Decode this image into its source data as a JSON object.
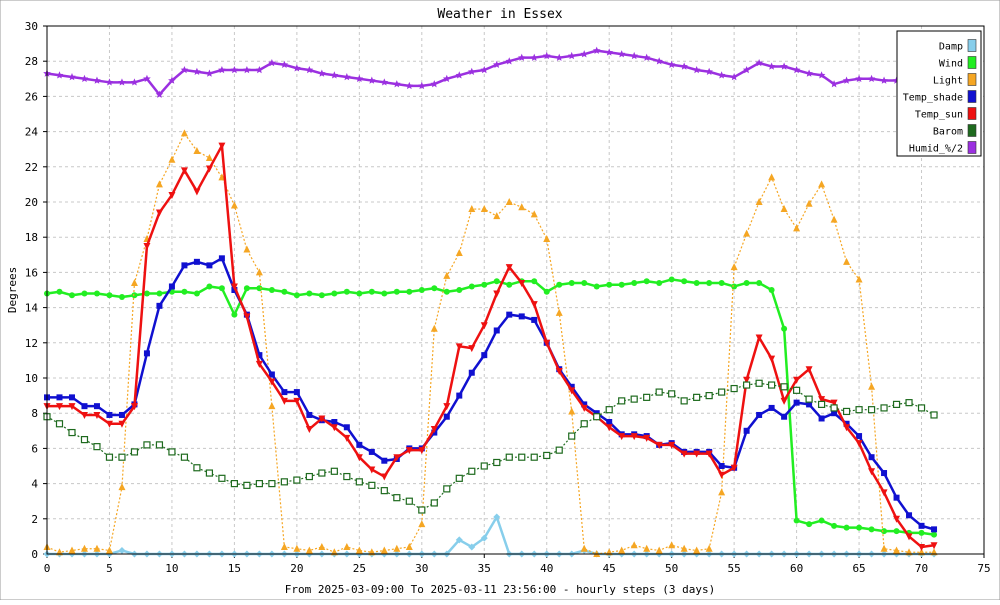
{
  "chart_data": {
    "type": "line",
    "title": "Weather in Essex",
    "xlabel": "From 2025-03-09:00 To 2025-03-11 23:56:00 - hourly steps (3 days)",
    "ylabel": "Degrees",
    "xlim": [
      0,
      75
    ],
    "ylim": [
      0,
      30
    ],
    "xticks": [
      "0",
      "5",
      "10",
      "15",
      "20",
      "25",
      "30",
      "35",
      "40",
      "45",
      "50",
      "55",
      "60",
      "65",
      "70",
      "75"
    ],
    "yticks": [
      "0",
      "2",
      "4",
      "6",
      "8",
      "10",
      "12",
      "14",
      "16",
      "18",
      "20",
      "22",
      "24",
      "26",
      "28",
      "30"
    ],
    "grid": true,
    "legend_position": "top-right",
    "x": [
      0,
      1,
      2,
      3,
      4,
      5,
      6,
      7,
      8,
      9,
      10,
      11,
      12,
      13,
      14,
      15,
      16,
      17,
      18,
      19,
      20,
      21,
      22,
      23,
      24,
      25,
      26,
      27,
      28,
      29,
      30,
      31,
      32,
      33,
      34,
      35,
      36,
      37,
      38,
      39,
      40,
      41,
      42,
      43,
      44,
      45,
      46,
      47,
      48,
      49,
      50,
      51,
      52,
      53,
      54,
      55,
      56,
      57,
      58,
      59,
      60,
      61,
      62,
      63,
      64,
      65,
      66,
      67,
      68,
      69,
      70,
      71
    ],
    "series": [
      {
        "name": "Damp",
        "color": "#87ceeb",
        "marker": "diamond",
        "dashed": false,
        "values": [
          0,
          0,
          0,
          0,
          0,
          0,
          0.2,
          0,
          0,
          0,
          0,
          0,
          0,
          0,
          0,
          0,
          0,
          0,
          0,
          0,
          0,
          0,
          0,
          0,
          0,
          0,
          0,
          0,
          0,
          0,
          0,
          0,
          0,
          0.8,
          0.4,
          0.9,
          2.1,
          0,
          0,
          0,
          0,
          0,
          0,
          0.2,
          0,
          0,
          0,
          0,
          0,
          0,
          0,
          0,
          0,
          0,
          0,
          0,
          0,
          0,
          0,
          0,
          0,
          0,
          0,
          0,
          0,
          0,
          0,
          0,
          0,
          0,
          0,
          0
        ]
      },
      {
        "name": "Wind",
        "color": "#22ee22",
        "marker": "circle",
        "dashed": false,
        "values": [
          14.8,
          14.9,
          14.7,
          14.8,
          14.8,
          14.7,
          14.6,
          14.7,
          14.8,
          14.8,
          14.9,
          14.9,
          14.8,
          15.2,
          15.1,
          13.6,
          15.1,
          15.1,
          15.0,
          14.9,
          14.7,
          14.8,
          14.7,
          14.8,
          14.9,
          14.8,
          14.9,
          14.8,
          14.9,
          14.9,
          15.0,
          15.1,
          14.9,
          15.0,
          15.2,
          15.3,
          15.5,
          15.3,
          15.5,
          15.5,
          14.9,
          15.3,
          15.4,
          15.4,
          15.2,
          15.3,
          15.3,
          15.4,
          15.5,
          15.4,
          15.6,
          15.5,
          15.4,
          15.4,
          15.4,
          15.2,
          15.4,
          15.4,
          15.0,
          12.8,
          1.9,
          1.7,
          1.9,
          1.6,
          1.5,
          1.5,
          1.4,
          1.3,
          1.3,
          1.2,
          1.2,
          1.1
        ]
      },
      {
        "name": "Light",
        "color": "#f5a623",
        "marker": "triangle-up",
        "dashed": true,
        "values": [
          0.4,
          0.1,
          0.2,
          0.3,
          0.3,
          0.2,
          3.8,
          15.4,
          17.9,
          21.0,
          22.4,
          23.9,
          22.9,
          22.5,
          21.4,
          19.8,
          17.3,
          16.0,
          8.4,
          0.4,
          0.3,
          0.2,
          0.4,
          0.1,
          0.4,
          0.2,
          0.1,
          0.2,
          0.3,
          0.4,
          1.7,
          12.8,
          15.8,
          17.1,
          19.6,
          19.6,
          19.2,
          20.0,
          19.7,
          19.3,
          17.9,
          13.7,
          8.1,
          0.3,
          0,
          0.1,
          0.2,
          0.5,
          0.3,
          0.2,
          0.5,
          0.3,
          0.2,
          0.3,
          3.5,
          16.3,
          18.2,
          20.0,
          21.4,
          19.6,
          18.5,
          19.9,
          21.0,
          19.0,
          16.6,
          15.6,
          9.5,
          0.3,
          0.2,
          0.1,
          0.1,
          0.1
        ]
      },
      {
        "name": "Temp_shade",
        "color": "#1010d0",
        "marker": "square",
        "dashed": false,
        "values": [
          8.9,
          8.9,
          8.9,
          8.4,
          8.4,
          7.9,
          7.9,
          8.5,
          11.4,
          14.1,
          15.2,
          16.4,
          16.6,
          16.4,
          16.8,
          15.0,
          13.6,
          11.3,
          10.2,
          9.2,
          9.2,
          7.9,
          7.6,
          7.5,
          7.2,
          6.2,
          5.8,
          5.3,
          5.4,
          6.0,
          6.0,
          6.9,
          7.8,
          9.0,
          10.3,
          11.3,
          12.7,
          13.6,
          13.5,
          13.3,
          12.0,
          10.5,
          9.5,
          8.5,
          8.0,
          7.5,
          6.8,
          6.8,
          6.7,
          6.2,
          6.3,
          5.8,
          5.8,
          5.8,
          5.0,
          4.9,
          7.0,
          7.9,
          8.3,
          7.8,
          8.6,
          8.5,
          7.7,
          8.0,
          7.4,
          6.7,
          5.5,
          4.6,
          3.2,
          2.2,
          1.6,
          1.4
        ]
      },
      {
        "name": "Temp_sun",
        "color": "#ee1111",
        "marker": "triangle-down",
        "dashed": false,
        "values": [
          8.4,
          8.4,
          8.4,
          7.9,
          7.9,
          7.4,
          7.4,
          8.4,
          17.5,
          19.4,
          20.4,
          21.8,
          20.6,
          21.9,
          23.2,
          15.2,
          13.5,
          10.8,
          9.8,
          8.7,
          8.7,
          7.1,
          7.7,
          7.2,
          6.6,
          5.5,
          4.8,
          4.4,
          5.5,
          5.9,
          5.9,
          7.1,
          8.4,
          11.8,
          11.7,
          13.0,
          14.8,
          16.3,
          15.4,
          14.2,
          12.0,
          10.4,
          9.3,
          8.3,
          7.8,
          7.2,
          6.7,
          6.7,
          6.6,
          6.2,
          6.2,
          5.7,
          5.7,
          5.7,
          4.5,
          4.9,
          9.9,
          12.3,
          11.1,
          8.7,
          9.9,
          10.5,
          8.8,
          8.6,
          7.2,
          6.3,
          4.7,
          3.5,
          2.0,
          1.0,
          0.4,
          0.5
        ]
      },
      {
        "name": "Barom",
        "color": "#1e6a1e",
        "marker": "square-open",
        "dashed": true,
        "values": [
          7.8,
          7.4,
          6.9,
          6.5,
          6.1,
          5.5,
          5.5,
          5.8,
          6.2,
          6.2,
          5.8,
          5.5,
          4.9,
          4.6,
          4.3,
          4.0,
          3.9,
          4.0,
          4.0,
          4.1,
          4.2,
          4.4,
          4.6,
          4.7,
          4.4,
          4.1,
          3.9,
          3.6,
          3.2,
          3.0,
          2.5,
          2.9,
          3.7,
          4.3,
          4.7,
          5.0,
          5.2,
          5.5,
          5.5,
          5.5,
          5.6,
          5.9,
          6.7,
          7.4,
          7.8,
          8.2,
          8.7,
          8.8,
          8.9,
          9.2,
          9.1,
          8.7,
          8.9,
          9.0,
          9.2,
          9.4,
          9.6,
          9.7,
          9.6,
          9.5,
          9.3,
          8.8,
          8.5,
          8.3,
          8.1,
          8.2,
          8.2,
          8.3,
          8.5,
          8.6,
          8.3,
          7.9
        ]
      },
      {
        "name": "Humid_%/2",
        "color": "#9b30e0",
        "marker": "star",
        "dashed": false,
        "values": [
          27.3,
          27.2,
          27.1,
          27.0,
          26.9,
          26.8,
          26.8,
          26.8,
          27.0,
          26.1,
          26.9,
          27.5,
          27.4,
          27.3,
          27.5,
          27.5,
          27.5,
          27.5,
          27.9,
          27.8,
          27.6,
          27.5,
          27.3,
          27.2,
          27.1,
          27.0,
          26.9,
          26.8,
          26.7,
          26.6,
          26.6,
          26.7,
          27.0,
          27.2,
          27.4,
          27.5,
          27.8,
          28.0,
          28.2,
          28.2,
          28.3,
          28.2,
          28.3,
          28.4,
          28.6,
          28.5,
          28.4,
          28.3,
          28.2,
          28.0,
          27.8,
          27.7,
          27.5,
          27.4,
          27.2,
          27.1,
          27.5,
          27.9,
          27.7,
          27.7,
          27.5,
          27.3,
          27.2,
          26.7,
          26.9,
          27.0,
          27.0,
          26.9,
          26.9,
          26.8,
          26.8,
          26.9
        ]
      }
    ]
  }
}
